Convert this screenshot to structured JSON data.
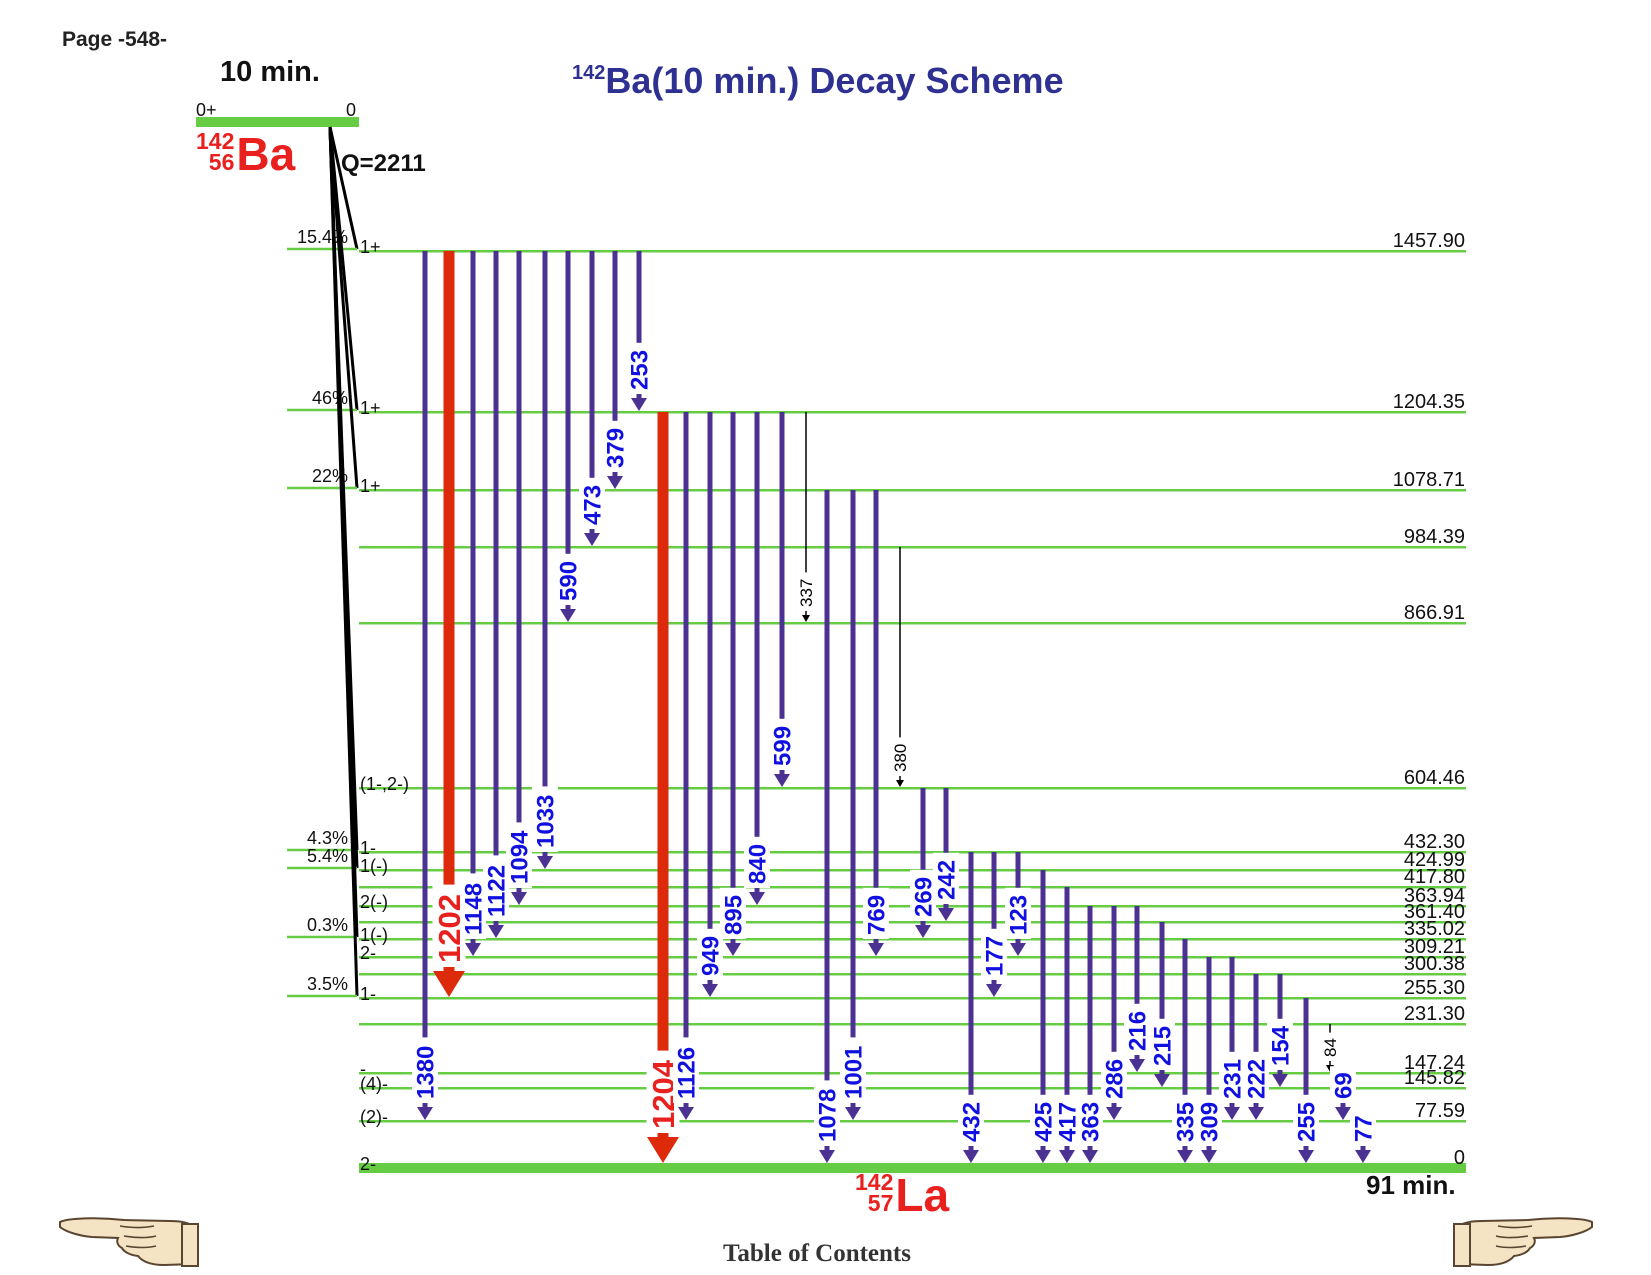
{
  "page_label": "Page -548-",
  "title": {
    "sup": "142",
    "text": "Ba(10 min.) Decay Scheme"
  },
  "parent": {
    "halflife": "10 min.",
    "spin": "0+",
    "energy": "0",
    "mass": "142",
    "z": "56",
    "symbol": "Ba",
    "qvalue": "Q=2211"
  },
  "daughter": {
    "halflife": "91 min.",
    "mass": "142",
    "z": "57",
    "symbol": "La"
  },
  "footer": {
    "toc": "Table of Contents",
    "prev_icon": "pointing-hand-left-icon",
    "next_icon": "pointing-hand-right-icon"
  },
  "colors": {
    "level": "#66cc44",
    "gamma": "#4b3192",
    "gamma_strong": "#dd2a0a",
    "gamma_label": "#1010e0",
    "gamma_label_strong": "#e8201e",
    "weak": "#000000"
  },
  "levels": [
    {
      "energy": "1457.90",
      "spin": "1+",
      "feed": "15.4%"
    },
    {
      "energy": "1204.35",
      "spin": "1+",
      "feed": "46%"
    },
    {
      "energy": "1078.71",
      "spin": "1+",
      "feed": "22%"
    },
    {
      "energy": "984.39",
      "spin": "",
      "feed": ""
    },
    {
      "energy": "866.91",
      "spin": "",
      "feed": ""
    },
    {
      "energy": "604.46",
      "spin": "(1-,2-)",
      "feed": ""
    },
    {
      "energy": "432.30",
      "spin": "1-",
      "feed": "4.3%"
    },
    {
      "energy": "424.99",
      "spin": "1(-)",
      "feed": "5.4%"
    },
    {
      "energy": "417.80",
      "spin": "",
      "feed": ""
    },
    {
      "energy": "363.94",
      "spin": "2(-)",
      "feed": ""
    },
    {
      "energy": "361.40",
      "spin": "",
      "feed": ""
    },
    {
      "energy": "335.02",
      "spin": "1(-)",
      "feed": "0.3%"
    },
    {
      "energy": "309.21",
      "spin": "2-",
      "feed": ""
    },
    {
      "energy": "300.38",
      "spin": "",
      "feed": ""
    },
    {
      "energy": "255.30",
      "spin": "1-",
      "feed": "3.5%"
    },
    {
      "energy": "231.30",
      "spin": "",
      "feed": ""
    },
    {
      "energy": "147.24",
      "spin": "-",
      "feed": ""
    },
    {
      "energy": "145.82",
      "spin": "(4)-",
      "feed": ""
    },
    {
      "energy": "77.59",
      "spin": "(2)-",
      "feed": ""
    },
    {
      "energy": "0",
      "spin": "2-",
      "feed": ""
    }
  ],
  "gammas": [
    {
      "label": "1380",
      "from": "1457.90",
      "to": "77.59",
      "style": "normal"
    },
    {
      "label": "1202",
      "from": "1457.90",
      "to": "255.30",
      "style": "strong"
    },
    {
      "label": "1148",
      "from": "1457.90",
      "to": "309.21",
      "style": "normal"
    },
    {
      "label": "1122",
      "from": "1457.90",
      "to": "335.02",
      "style": "normal"
    },
    {
      "label": "1094",
      "from": "1457.90",
      "to": "363.94",
      "style": "normal"
    },
    {
      "label": "1033",
      "from": "1457.90",
      "to": "424.99",
      "style": "normal"
    },
    {
      "label": "590",
      "from": "1457.90",
      "to": "866.91",
      "style": "normal"
    },
    {
      "label": "473",
      "from": "1457.90",
      "to": "984.39",
      "style": "normal"
    },
    {
      "label": "379",
      "from": "1457.90",
      "to": "1078.71",
      "style": "normal"
    },
    {
      "label": "253",
      "from": "1457.90",
      "to": "1204.35",
      "style": "normal"
    },
    {
      "label": "1204",
      "from": "1204.35",
      "to": "0",
      "style": "strong"
    },
    {
      "label": "1126",
      "from": "1204.35",
      "to": "77.59",
      "style": "normal"
    },
    {
      "label": "949",
      "from": "1204.35",
      "to": "255.30",
      "style": "normal"
    },
    {
      "label": "895",
      "from": "1204.35",
      "to": "309.21",
      "style": "normal"
    },
    {
      "label": "840",
      "from": "1204.35",
      "to": "363.94",
      "style": "normal"
    },
    {
      "label": "599",
      "from": "1204.35",
      "to": "604.46",
      "style": "normal"
    },
    {
      "label": "337",
      "from": "1204.35",
      "to": "866.91",
      "style": "weak"
    },
    {
      "label": "1078",
      "from": "1078.71",
      "to": "0",
      "style": "normal"
    },
    {
      "label": "1001",
      "from": "1078.71",
      "to": "77.59",
      "style": "normal"
    },
    {
      "label": "769",
      "from": "1078.71",
      "to": "309.21",
      "style": "normal"
    },
    {
      "label": "380",
      "from": "984.39",
      "to": "604.46",
      "style": "weak"
    },
    {
      "label": "269",
      "from": "604.46",
      "to": "335.02",
      "style": "normal"
    },
    {
      "label": "242",
      "from": "604.46",
      "to": "361.40",
      "style": "normal"
    },
    {
      "label": "432",
      "from": "432.30",
      "to": "0",
      "style": "normal"
    },
    {
      "label": "177",
      "from": "432.30",
      "to": "255.30",
      "style": "normal"
    },
    {
      "label": "123",
      "from": "432.30",
      "to": "309.21",
      "style": "normal"
    },
    {
      "label": "425",
      "from": "424.99",
      "to": "0",
      "style": "normal"
    },
    {
      "label": "417",
      "from": "417.80",
      "to": "0",
      "style": "normal"
    },
    {
      "label": "363",
      "from": "363.94",
      "to": "0",
      "style": "normal"
    },
    {
      "label": "286",
      "from": "363.94",
      "to": "77.59",
      "style": "normal"
    },
    {
      "label": "216",
      "from": "363.94",
      "to": "147.24",
      "style": "normal"
    },
    {
      "label": "215",
      "from": "361.40",
      "to": "145.82",
      "style": "normal"
    },
    {
      "label": "335",
      "from": "335.02",
      "to": "0",
      "style": "normal"
    },
    {
      "label": "309",
      "from": "309.21",
      "to": "0",
      "style": "normal"
    },
    {
      "label": "231",
      "from": "309.21",
      "to": "77.59",
      "style": "normal"
    },
    {
      "label": "222",
      "from": "300.38",
      "to": "77.59",
      "style": "normal"
    },
    {
      "label": "154",
      "from": "300.38",
      "to": "145.82",
      "style": "normal"
    },
    {
      "label": "255",
      "from": "255.30",
      "to": "0",
      "style": "normal"
    },
    {
      "label": "84",
      "from": "231.30",
      "to": "147.24",
      "style": "weak"
    },
    {
      "label": "69",
      "from": "147.24",
      "to": "77.59",
      "style": "normal"
    },
    {
      "label": "77",
      "from": "77.59",
      "to": "0",
      "style": "normal"
    }
  ]
}
